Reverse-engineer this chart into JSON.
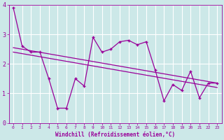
{
  "xlabel": "Windchill (Refroidissement éolien,°C)",
  "x": [
    0,
    1,
    2,
    3,
    4,
    5,
    6,
    7,
    8,
    9,
    10,
    11,
    12,
    13,
    14,
    15,
    16,
    17,
    18,
    19,
    20,
    21,
    22,
    23
  ],
  "y_data": [
    3.9,
    2.6,
    2.4,
    2.4,
    1.5,
    0.5,
    0.5,
    1.5,
    1.25,
    2.9,
    2.4,
    2.5,
    2.75,
    2.8,
    2.65,
    2.75,
    1.8,
    0.75,
    1.3,
    1.1,
    1.75,
    0.85,
    1.35,
    1.35
  ],
  "line_color": "#990099",
  "marker": "+",
  "bg_color": "#cce8e8",
  "grid_color": "#ffffff",
  "text_color": "#990099",
  "ylim": [
    0,
    4
  ],
  "xlim": [
    -0.5,
    23.5
  ],
  "yticks": [
    0,
    1,
    2,
    3,
    4
  ],
  "xticks": [
    0,
    1,
    2,
    3,
    4,
    5,
    6,
    7,
    8,
    9,
    10,
    11,
    12,
    13,
    14,
    15,
    16,
    17,
    18,
    19,
    20,
    21,
    22,
    23
  ],
  "reg1_start": 2.55,
  "reg1_end": 1.35,
  "reg2_start": 2.4,
  "reg2_end": 1.2
}
